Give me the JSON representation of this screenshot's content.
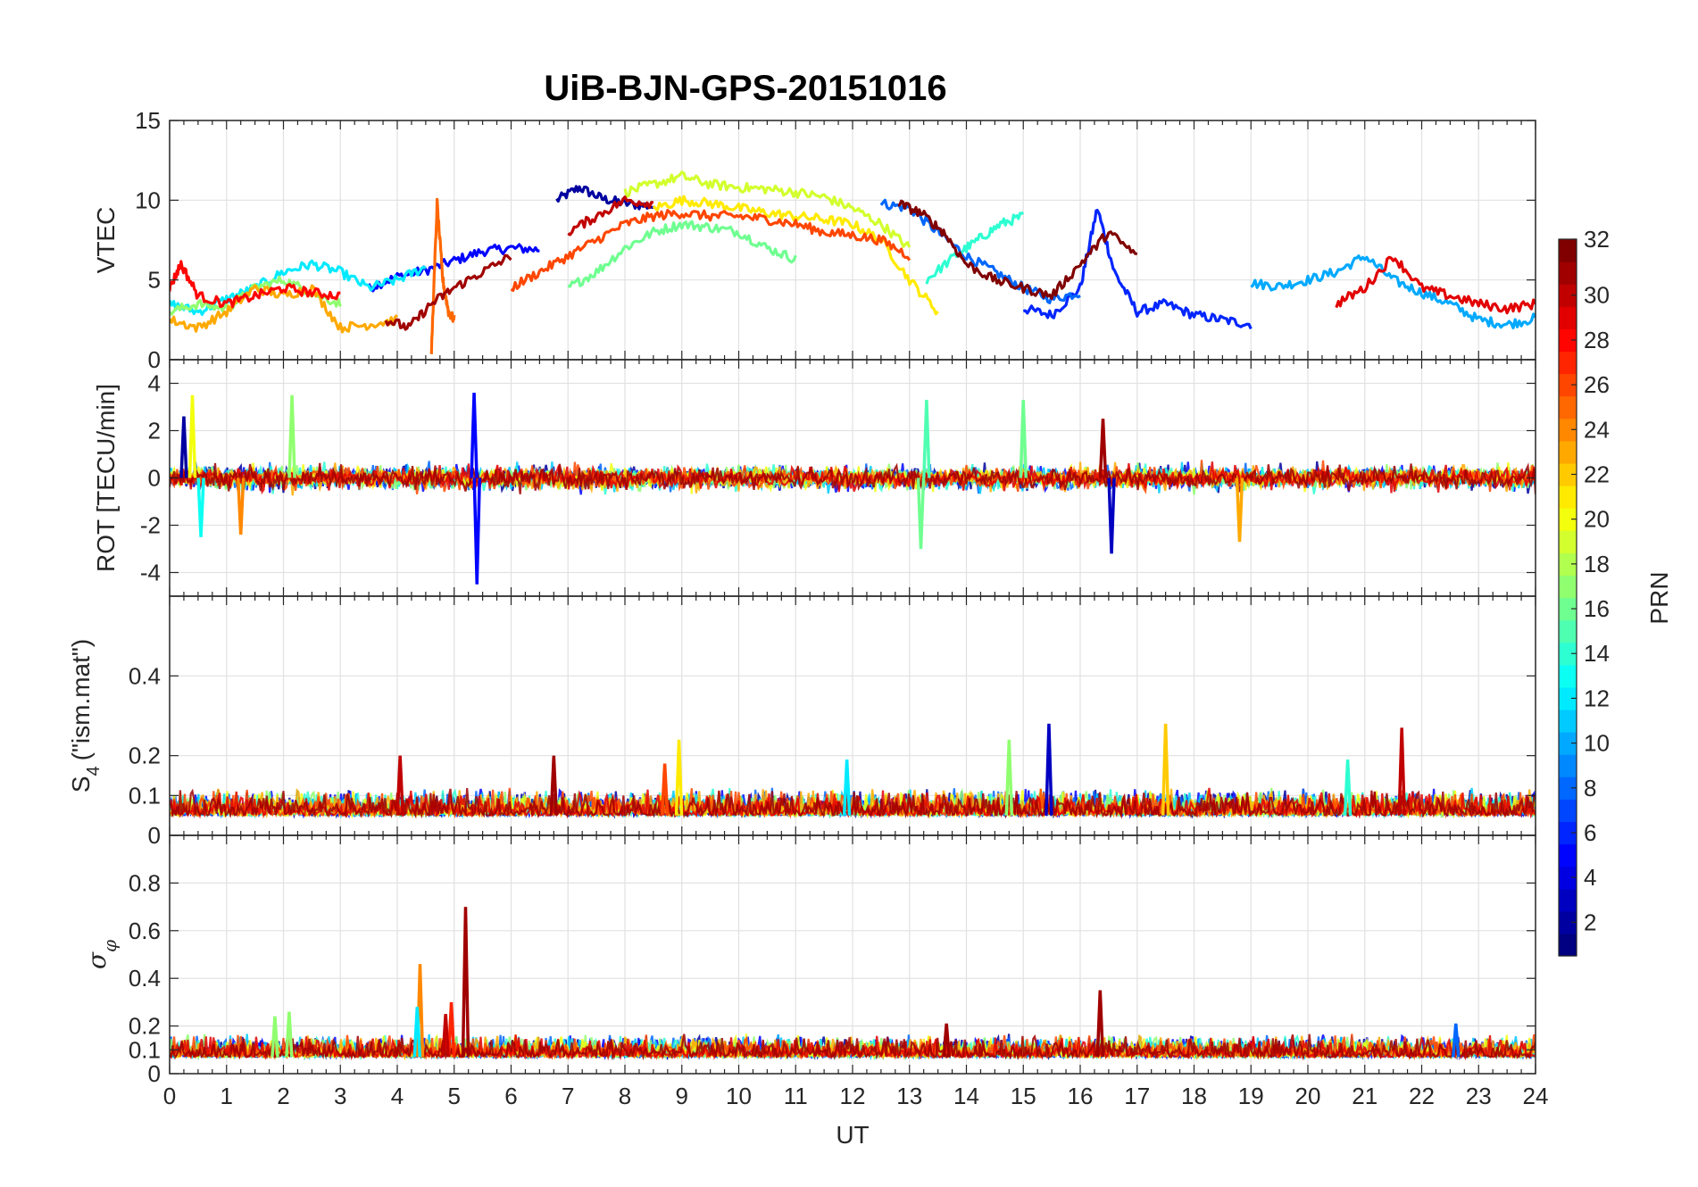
{
  "figure": {
    "title": "UiB-BJN-GPS-20151016"
  },
  "chart_data": [
    {
      "type": "line",
      "panel": "vtec",
      "ylabel": "VTEC",
      "xlim": [
        0,
        24
      ],
      "ylim": [
        0,
        15
      ],
      "yticks": [
        0,
        5,
        10,
        15
      ],
      "grid": true,
      "series": [
        {
          "prn": 2,
          "x": [
            6.8,
            7.2,
            7.6,
            8.0,
            8.5
          ],
          "y": [
            10.0,
            10.8,
            10.1,
            9.8,
            9.6
          ]
        },
        {
          "prn": 5,
          "x": [
            3.5,
            4.0,
            4.5,
            5.0,
            5.5,
            6.0,
            6.5
          ],
          "y": [
            4.5,
            5.2,
            5.6,
            6.2,
            6.8,
            7.0,
            6.9
          ]
        },
        {
          "prn": 6,
          "x": [
            15.0,
            15.5,
            16.0,
            16.3,
            16.6,
            17.0,
            17.5,
            18.0,
            18.5,
            19.0
          ],
          "y": [
            3.2,
            2.8,
            4.5,
            9.5,
            5.5,
            3.0,
            3.5,
            2.8,
            2.5,
            2.2
          ]
        },
        {
          "prn": 8,
          "x": [
            12.5,
            13.0,
            13.5,
            14.0,
            14.5,
            15.0,
            15.5,
            16.0
          ],
          "y": [
            9.8,
            9.5,
            8.0,
            6.5,
            5.5,
            4.5,
            3.8,
            4.2
          ]
        },
        {
          "prn": 10,
          "x": [
            19.0,
            19.5,
            20.0,
            20.5,
            21.0,
            21.5,
            22.0,
            22.5,
            23.0,
            23.5,
            24.0
          ],
          "y": [
            4.8,
            4.6,
            5.0,
            5.5,
            6.5,
            5.0,
            4.2,
            3.5,
            2.5,
            2.2,
            2.6
          ]
        },
        {
          "prn": 12,
          "x": [
            0.0,
            0.5,
            1.0,
            1.5,
            2.0,
            2.5,
            3.0,
            3.5,
            4.0,
            4.5
          ],
          "y": [
            3.5,
            3.0,
            3.8,
            4.5,
            5.5,
            6.0,
            5.5,
            4.5,
            5.0,
            5.8
          ]
        },
        {
          "prn": 14,
          "x": [
            13.3,
            13.8,
            14.2,
            14.6,
            15.0
          ],
          "y": [
            5.0,
            6.5,
            7.5,
            8.5,
            9.0
          ]
        },
        {
          "prn": 16,
          "x": [
            7.0,
            7.5,
            8.0,
            8.5,
            9.0,
            9.5,
            10.0,
            10.5,
            11.0
          ],
          "y": [
            4.5,
            5.5,
            7.0,
            8.0,
            8.5,
            8.3,
            8.0,
            7.0,
            6.3
          ]
        },
        {
          "prn": 17,
          "x": [
            0.0,
            0.5,
            1.0,
            1.5,
            2.0,
            2.5,
            3.0
          ],
          "y": [
            3.0,
            3.5,
            3.2,
            4.5,
            5.0,
            4.2,
            3.5
          ]
        },
        {
          "prn": 19,
          "x": [
            8.0,
            8.5,
            9.0,
            9.5,
            10.0,
            10.5,
            11.0,
            11.5,
            12.0,
            12.5,
            13.0
          ],
          "y": [
            10.5,
            11.0,
            11.5,
            11.0,
            10.8,
            10.7,
            10.5,
            10.2,
            9.5,
            8.5,
            7.0
          ]
        },
        {
          "prn": 21,
          "x": [
            8.5,
            9.0,
            9.5,
            10.0,
            10.5,
            11.0,
            11.5,
            12.0,
            12.5,
            13.0,
            13.5
          ],
          "y": [
            9.5,
            10.0,
            9.8,
            9.5,
            9.2,
            9.0,
            8.8,
            8.5,
            7.5,
            5.0,
            3.0
          ]
        },
        {
          "prn": 23,
          "x": [
            0.0,
            0.5,
            1.0,
            1.5,
            2.0,
            2.5,
            3.0,
            3.5,
            4.0
          ],
          "y": [
            2.5,
            2.0,
            3.0,
            4.5,
            4.0,
            4.5,
            2.0,
            2.2,
            2.5
          ]
        },
        {
          "prn": 25,
          "x": [
            4.6,
            4.7,
            4.8,
            4.9,
            5.0
          ],
          "y": [
            0.5,
            9.8,
            5.0,
            3.0,
            2.5
          ]
        },
        {
          "prn": 26,
          "x": [
            6.0,
            6.5,
            7.0,
            7.5,
            8.0,
            8.5,
            9.0,
            9.5,
            10.0,
            10.5,
            11.0,
            11.5,
            12.0,
            12.5,
            13.0
          ],
          "y": [
            4.5,
            5.5,
            6.5,
            7.5,
            8.5,
            9.0,
            9.2,
            9.0,
            9.0,
            8.8,
            8.5,
            8.0,
            7.8,
            7.5,
            6.5
          ]
        },
        {
          "prn": 28,
          "x": [
            0.0,
            0.2,
            0.5,
            1.0,
            1.5,
            2.0,
            2.5,
            3.0
          ],
          "y": [
            4.5,
            6.0,
            4.0,
            3.5,
            4.0,
            4.5,
            4.2,
            4.0
          ]
        },
        {
          "prn": 29,
          "x": [
            20.5,
            21.0,
            21.5,
            22.0,
            22.5,
            23.0,
            23.5,
            24.0
          ],
          "y": [
            3.5,
            4.5,
            6.5,
            4.5,
            4.0,
            3.5,
            3.2,
            3.5
          ]
        },
        {
          "prn": 30,
          "x": [
            7.0,
            7.5,
            8.0,
            8.5
          ],
          "y": [
            8.0,
            9.0,
            10.0,
            9.8
          ]
        },
        {
          "prn": 31,
          "x": [
            3.8,
            4.2,
            4.6,
            5.0,
            5.5,
            6.0
          ],
          "y": [
            2.5,
            2.0,
            3.5,
            4.5,
            5.5,
            6.5
          ]
        },
        {
          "prn": 32,
          "x": [
            12.8,
            13.2,
            13.6,
            14.0,
            14.5,
            15.0,
            15.5,
            16.0,
            16.5,
            17.0
          ],
          "y": [
            9.8,
            9.2,
            8.0,
            6.0,
            5.0,
            4.5,
            4.0,
            6.0,
            8.0,
            6.5
          ]
        }
      ]
    },
    {
      "type": "line",
      "panel": "rot",
      "ylabel": "ROT [TECU/min]",
      "xlim": [
        0,
        24
      ],
      "ylim": [
        -5,
        5
      ],
      "yticks": [
        -4,
        -2,
        0,
        2,
        4
      ],
      "grid": true,
      "spikes": [
        {
          "prn": 5,
          "x": 5.4,
          "y": -4.5
        },
        {
          "prn": 5,
          "x": 5.35,
          "y": 3.6
        },
        {
          "prn": 2,
          "x": 0.25,
          "y": 2.6
        },
        {
          "prn": 20,
          "x": 0.4,
          "y": 3.5
        },
        {
          "prn": 17,
          "x": 2.15,
          "y": 3.5
        },
        {
          "prn": 16,
          "x": 13.2,
          "y": -3.0
        },
        {
          "prn": 15,
          "x": 13.3,
          "y": 3.3
        },
        {
          "prn": 16,
          "x": 15.0,
          "y": 3.3
        },
        {
          "prn": 3,
          "x": 16.55,
          "y": -3.2
        },
        {
          "prn": 23,
          "x": 18.8,
          "y": -2.7
        },
        {
          "prn": 31,
          "x": 16.4,
          "y": 2.5
        },
        {
          "prn": 13,
          "x": 0.55,
          "y": -2.5
        },
        {
          "prn": 24,
          "x": 1.25,
          "y": -2.4
        }
      ],
      "baseline_amplitude": 0.8
    },
    {
      "type": "line",
      "panel": "s4",
      "ylabel": "S4 (\"ism.mat\")",
      "xlim": [
        0,
        24
      ],
      "ylim": [
        0,
        0.6
      ],
      "yticks": [
        0,
        0.1,
        0.2,
        0.4
      ],
      "grid": true,
      "spikes": [
        {
          "prn": 3,
          "x": 15.45,
          "y": 0.28
        },
        {
          "prn": 22,
          "x": 17.5,
          "y": 0.28
        },
        {
          "prn": 30,
          "x": 21.65,
          "y": 0.27
        },
        {
          "prn": 21,
          "x": 8.95,
          "y": 0.24
        },
        {
          "prn": 17,
          "x": 14.75,
          "y": 0.24
        },
        {
          "prn": 30,
          "x": 4.05,
          "y": 0.2
        },
        {
          "prn": 31,
          "x": 6.75,
          "y": 0.2
        },
        {
          "prn": 12,
          "x": 11.9,
          "y": 0.19
        },
        {
          "prn": 14,
          "x": 20.7,
          "y": 0.19
        },
        {
          "prn": 26,
          "x": 8.7,
          "y": 0.18
        }
      ],
      "baseline": 0.05
    },
    {
      "type": "line",
      "panel": "sigma_phi",
      "ylabel": "σφ",
      "xlabel": "UT",
      "xlim": [
        0,
        24
      ],
      "ylim": [
        0,
        1
      ],
      "yticks": [
        0,
        0.1,
        0.2,
        0.4,
        0.6,
        0.8
      ],
      "xticks": [
        0,
        1,
        2,
        3,
        4,
        5,
        6,
        7,
        8,
        9,
        10,
        11,
        12,
        13,
        14,
        15,
        16,
        17,
        18,
        19,
        20,
        21,
        22,
        23,
        24
      ],
      "grid": true,
      "spikes": [
        {
          "prn": 31,
          "x": 5.2,
          "y": 0.7
        },
        {
          "prn": 24,
          "x": 4.4,
          "y": 0.46
        },
        {
          "prn": 31,
          "x": 16.35,
          "y": 0.35
        },
        {
          "prn": 27,
          "x": 4.95,
          "y": 0.3
        },
        {
          "prn": 12,
          "x": 4.35,
          "y": 0.28
        },
        {
          "prn": 17,
          "x": 2.1,
          "y": 0.26
        },
        {
          "prn": 17,
          "x": 1.85,
          "y": 0.24
        },
        {
          "prn": 30,
          "x": 4.85,
          "y": 0.25
        },
        {
          "prn": 31,
          "x": 13.65,
          "y": 0.21
        },
        {
          "prn": 8,
          "x": 22.6,
          "y": 0.21
        }
      ],
      "baseline": 0.07
    }
  ],
  "colorbar": {
    "label": "PRN",
    "min": 1,
    "max": 32,
    "ticks": [
      2,
      4,
      6,
      8,
      10,
      12,
      14,
      16,
      18,
      20,
      22,
      24,
      26,
      28,
      30,
      32
    ],
    "colormap": "jet"
  }
}
